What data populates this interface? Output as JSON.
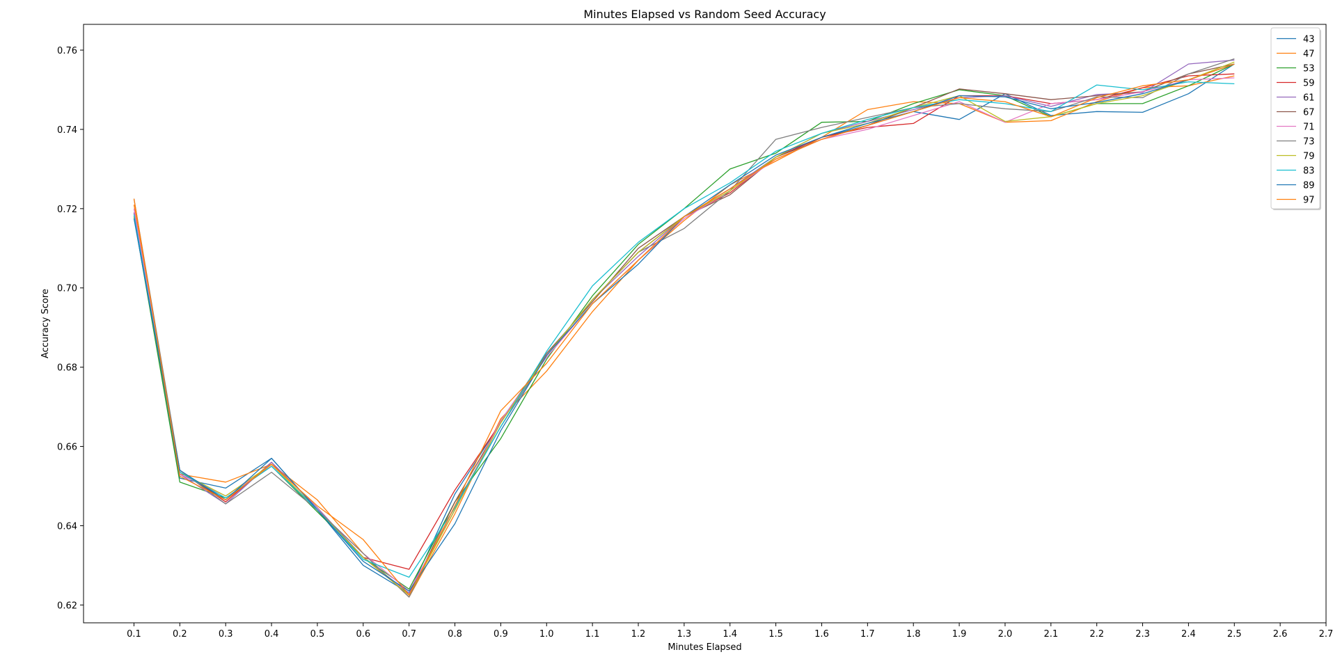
{
  "chart_data": {
    "type": "line",
    "title": "Minutes Elapsed vs Random Seed Accuracy",
    "xlabel": "Minutes Elapsed",
    "ylabel": "Accuracy Score",
    "xlim": [
      -0.01,
      2.7
    ],
    "ylim": [
      0.6155,
      0.7665
    ],
    "x_ticks": [
      "0.1",
      "0.2",
      "0.3",
      "0.4",
      "0.5",
      "0.6",
      "0.7",
      "0.8",
      "0.9",
      "1.0",
      "1.1",
      "1.2",
      "1.3",
      "1.4",
      "1.5",
      "1.6",
      "1.7",
      "1.8",
      "1.9",
      "2.0",
      "2.1",
      "2.2",
      "2.3",
      "2.4",
      "2.5",
      "2.6",
      "2.7"
    ],
    "y_ticks": [
      "0.62",
      "0.64",
      "0.66",
      "0.68",
      "0.70",
      "0.72",
      "0.74",
      "0.76"
    ],
    "grid": false,
    "legend_position": "top-right",
    "x": [
      0.1,
      0.2,
      0.3,
      0.4,
      0.5,
      0.6,
      0.7,
      0.8,
      0.9,
      1.0,
      1.1,
      1.2,
      1.3,
      1.4,
      1.5,
      1.6,
      1.7,
      1.8,
      1.9,
      2.0,
      2.1,
      2.2,
      2.3,
      2.4,
      2.5
    ],
    "series": [
      {
        "name": "43",
        "color": "#1f77b4",
        "values": [
          0.719,
          0.652,
          0.6495,
          0.657,
          0.644,
          0.63,
          0.623,
          0.648,
          0.666,
          0.683,
          0.697,
          0.709,
          0.718,
          0.725,
          0.733,
          0.738,
          0.741,
          0.7445,
          0.7425,
          0.749,
          0.7435,
          0.7445,
          0.7443,
          0.749,
          0.7565
        ]
      },
      {
        "name": "47",
        "color": "#ff7f0e",
        "values": [
          0.721,
          0.653,
          0.651,
          0.6555,
          0.6465,
          0.633,
          0.622,
          0.643,
          0.667,
          0.679,
          0.694,
          0.707,
          0.717,
          0.726,
          0.732,
          0.738,
          0.745,
          0.747,
          0.7465,
          0.7418,
          0.7422,
          0.747,
          0.7505,
          0.751,
          0.7535
        ]
      },
      {
        "name": "53",
        "color": "#2ca02c",
        "values": [
          0.718,
          0.651,
          0.647,
          0.655,
          0.6435,
          0.632,
          0.624,
          0.646,
          0.662,
          0.682,
          0.698,
          0.711,
          0.72,
          0.73,
          0.734,
          0.7418,
          0.742,
          0.7465,
          0.75,
          0.7485,
          0.7432,
          0.7465,
          0.7465,
          0.751,
          0.7565
        ]
      },
      {
        "name": "59",
        "color": "#d62728",
        "values": [
          0.719,
          0.654,
          0.646,
          0.656,
          0.6445,
          0.632,
          0.629,
          0.649,
          0.666,
          0.683,
          0.697,
          0.709,
          0.718,
          0.724,
          0.733,
          0.738,
          0.7405,
          0.7415,
          0.7485,
          0.7485,
          0.7465,
          0.7475,
          0.7505,
          0.7535,
          0.754
        ]
      },
      {
        "name": "61",
        "color": "#9467bd",
        "values": [
          0.719,
          0.653,
          0.6455,
          0.656,
          0.6445,
          0.632,
          0.623,
          0.644,
          0.6665,
          0.683,
          0.697,
          0.708,
          0.718,
          0.725,
          0.733,
          0.739,
          0.742,
          0.745,
          0.748,
          0.7485,
          0.7458,
          0.7488,
          0.7493,
          0.7565,
          0.7575
        ]
      },
      {
        "name": "67",
        "color": "#8c564b",
        "values": [
          0.718,
          0.6535,
          0.6465,
          0.6555,
          0.644,
          0.632,
          0.6225,
          0.646,
          0.666,
          0.6835,
          0.6965,
          0.71,
          0.718,
          0.7235,
          0.733,
          0.7375,
          0.741,
          0.7455,
          0.7502,
          0.749,
          0.7475,
          0.7485,
          0.7495,
          0.754,
          0.7565
        ]
      },
      {
        "name": "71",
        "color": "#e377c2",
        "values": [
          0.72,
          0.653,
          0.6475,
          0.655,
          0.644,
          0.633,
          0.6235,
          0.644,
          0.6665,
          0.6825,
          0.696,
          0.707,
          0.7175,
          0.7245,
          0.7325,
          0.7375,
          0.74,
          0.7435,
          0.747,
          0.7418,
          0.7465,
          0.7475,
          0.7495,
          0.7525,
          0.753
        ]
      },
      {
        "name": "73",
        "color": "#7f7f7f",
        "values": [
          0.7225,
          0.654,
          0.6455,
          0.6535,
          0.644,
          0.633,
          0.622,
          0.645,
          0.665,
          0.683,
          0.697,
          0.709,
          0.715,
          0.7245,
          0.7375,
          0.7405,
          0.743,
          0.7455,
          0.7465,
          0.7452,
          0.7445,
          0.7482,
          0.748,
          0.754,
          0.7578
        ]
      },
      {
        "name": "79",
        "color": "#bcbd22",
        "values": [
          0.718,
          0.6535,
          0.6475,
          0.6555,
          0.644,
          0.632,
          0.6225,
          0.644,
          0.666,
          0.683,
          0.697,
          0.709,
          0.718,
          0.7245,
          0.733,
          0.739,
          0.7415,
          0.7455,
          0.7485,
          0.742,
          0.7432,
          0.7465,
          0.7485,
          0.7525,
          0.757
        ]
      },
      {
        "name": "83",
        "color": "#17becf",
        "values": [
          0.7185,
          0.6535,
          0.647,
          0.655,
          0.644,
          0.6315,
          0.627,
          0.6445,
          0.665,
          0.684,
          0.7005,
          0.7115,
          0.72,
          0.7265,
          0.7345,
          0.739,
          0.7425,
          0.7455,
          0.7475,
          0.7465,
          0.7445,
          0.7512,
          0.75,
          0.752,
          0.7515
        ]
      },
      {
        "name": "89",
        "color": "#1f77b4",
        "values": [
          0.7175,
          0.654,
          0.6465,
          0.657,
          0.644,
          0.631,
          0.6235,
          0.6405,
          0.664,
          0.683,
          0.696,
          0.706,
          0.718,
          0.726,
          0.7335,
          0.738,
          0.7415,
          0.7445,
          0.7485,
          0.7482,
          0.7452,
          0.7468,
          0.749,
          0.7525,
          0.7565
        ]
      },
      {
        "name": "97",
        "color": "#ff7f0e",
        "values": [
          0.7225,
          0.6525,
          0.6465,
          0.6555,
          0.645,
          0.6365,
          0.6225,
          0.645,
          0.669,
          0.681,
          0.696,
          0.707,
          0.718,
          0.725,
          0.7325,
          0.7375,
          0.741,
          0.7445,
          0.748,
          0.747,
          0.7432,
          0.748,
          0.751,
          0.7525,
          0.7565
        ]
      }
    ]
  }
}
